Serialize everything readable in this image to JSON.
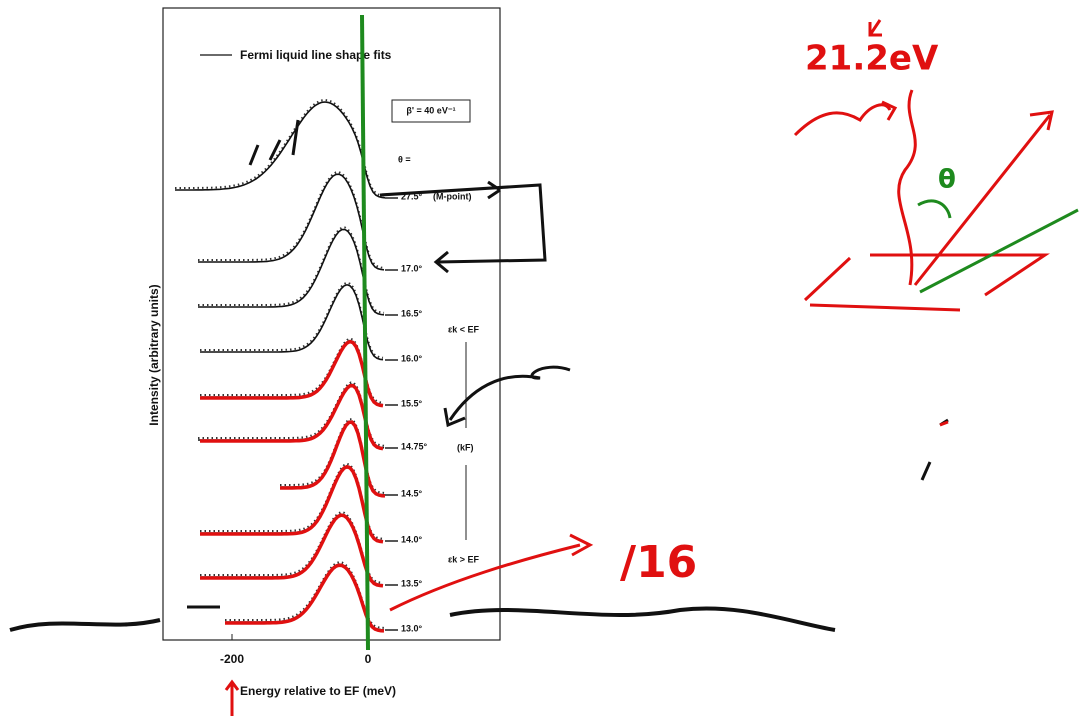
{
  "legend": "Fermi liquid line shape fits",
  "beta": "β' = 40 eV⁻¹",
  "theta_header": "θ =",
  "curves": [
    {
      "label": "27.5°",
      "note": "(M-point)"
    },
    {
      "label": "17.0°"
    },
    {
      "label": "16.5°"
    },
    {
      "label": "16.0°"
    },
    {
      "label": "15.5°"
    },
    {
      "label": "14.75°"
    },
    {
      "label": "14.5°"
    },
    {
      "label": "14.0°"
    },
    {
      "label": "13.5°"
    },
    {
      "label": "13.0°"
    }
  ],
  "side": {
    "above": "εk < EF",
    "kf": "(kF)",
    "below": "εk > EF"
  },
  "y_axis_label": "Intensity (arbitrary units)",
  "x_axis": {
    "label": "Energy relative to EF (meV)",
    "ticks": [
      "-200",
      "0"
    ]
  },
  "annotations": {
    "energy": "21.2eV",
    "theta": "θ",
    "scale": "/16"
  }
}
